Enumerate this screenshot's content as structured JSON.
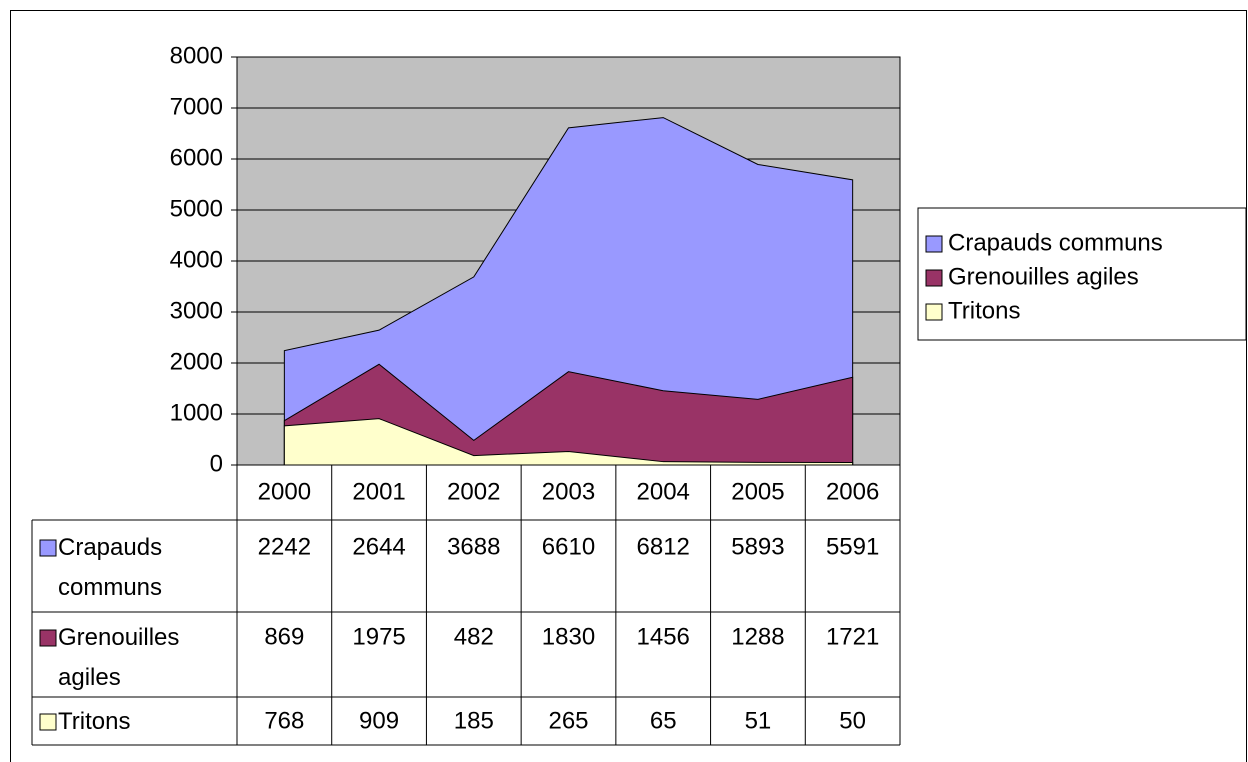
{
  "chart_data": {
    "type": "area",
    "categories": [
      "2000",
      "2001",
      "2002",
      "2003",
      "2004",
      "2005",
      "2006"
    ],
    "series": [
      {
        "name": "Crapauds communs",
        "color": "#9999ff",
        "values": [
          2242,
          2644,
          3688,
          6610,
          6812,
          5893,
          5591
        ]
      },
      {
        "name": "Grenouilles agiles",
        "color": "#993366",
        "values": [
          869,
          1975,
          482,
          1830,
          1456,
          1288,
          1721
        ]
      },
      {
        "name": "Tritons",
        "color": "#ffffcc",
        "values": [
          768,
          909,
          185,
          265,
          65,
          51,
          50
        ]
      }
    ],
    "ylim": [
      0,
      8000
    ],
    "yticks": [
      0,
      1000,
      2000,
      3000,
      4000,
      5000,
      6000,
      7000,
      8000
    ],
    "grid": true,
    "legend": "right",
    "data_table": true
  }
}
